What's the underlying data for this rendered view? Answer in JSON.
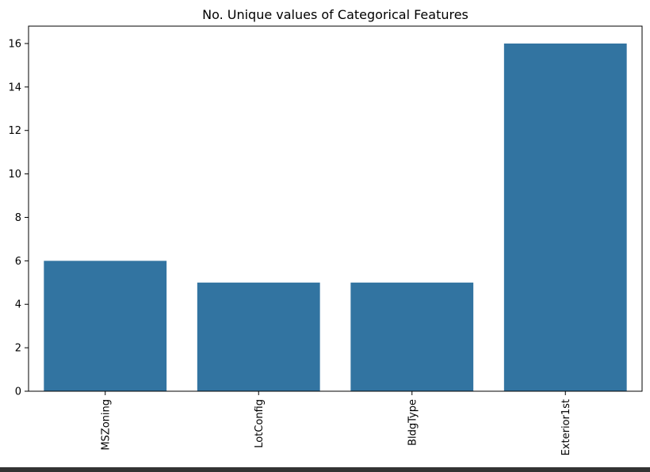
{
  "chart_data": {
    "type": "bar",
    "title": "No. Unique values of Categorical Features",
    "xlabel": "",
    "ylabel": "",
    "categories": [
      "MSZoning",
      "LotConfig",
      "BldgType",
      "Exterior1st"
    ],
    "values": [
      6,
      5,
      5,
      16
    ],
    "ylim": [
      0,
      16.8
    ],
    "yticks": [
      0,
      2,
      4,
      6,
      8,
      10,
      12,
      14,
      16
    ],
    "bar_color": "#3274a1",
    "grid": false,
    "legend": "none"
  }
}
